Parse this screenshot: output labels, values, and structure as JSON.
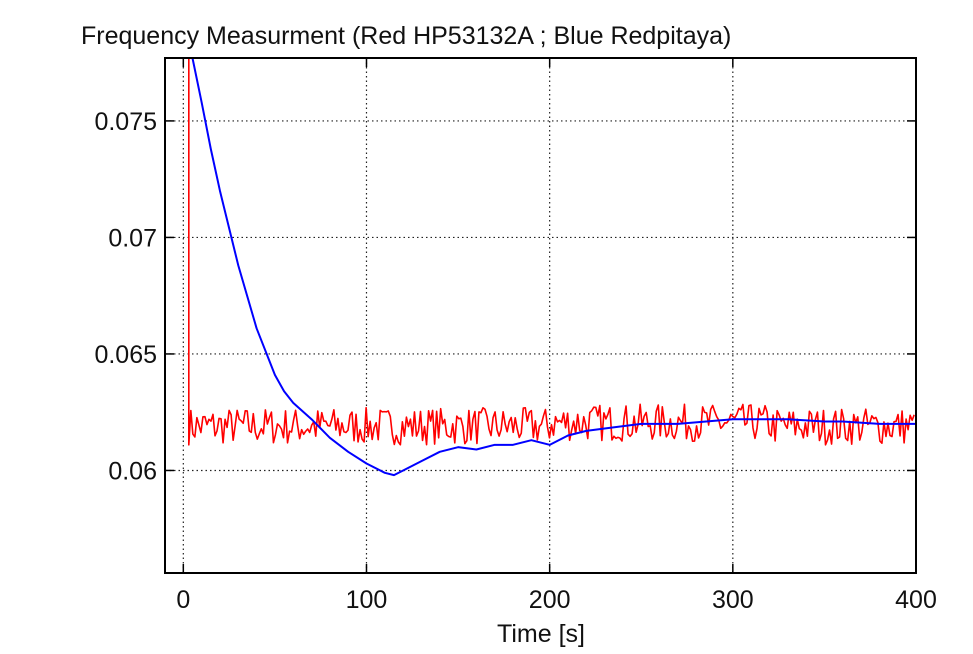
{
  "chart_data": {
    "type": "line",
    "title": "Frequency Measurment (Red HP53132A ; Blue Redpitaya)",
    "xlabel": "Time [s]",
    "ylabel": "",
    "xlim": [
      -10,
      400
    ],
    "ylim": [
      0.0556,
      0.0777
    ],
    "xticks": [
      0,
      100,
      200,
      300,
      400
    ],
    "xtick_labels": [
      "0",
      "100",
      "200",
      "300",
      "400"
    ],
    "yticks": [
      0.06,
      0.065,
      0.07,
      0.075
    ],
    "ytick_labels": [
      "0.06",
      "0.065",
      "0.07",
      "0.075"
    ],
    "grid": true,
    "grid_style": "dotted",
    "legend": "none",
    "series": [
      {
        "color": "#ff0000",
        "style": "noisy trace around 0.062 after initial spike at t≈3 s",
        "x": [
          3,
          3,
          3,
          400
        ],
        "y": [
          0.0777,
          0.0628,
          0.0619,
          0.0619
        ],
        "noise_amplitude": 0.0008
      },
      {
        "color": "#0000ff",
        "style": "smooth decaying trace",
        "x": [
          5,
          10,
          15,
          20,
          30,
          40,
          50,
          55,
          60,
          70,
          80,
          90,
          100,
          110,
          115,
          120,
          130,
          140,
          150,
          160,
          170,
          180,
          190,
          200,
          210,
          220,
          230,
          250,
          270,
          300,
          330,
          350,
          360,
          380,
          400
        ],
        "y": [
          0.0777,
          0.0758,
          0.0738,
          0.072,
          0.0688,
          0.0661,
          0.0641,
          0.0634,
          0.0629,
          0.0622,
          0.0614,
          0.0608,
          0.0603,
          0.0599,
          0.0598,
          0.06,
          0.0604,
          0.0608,
          0.061,
          0.0609,
          0.0611,
          0.0611,
          0.0613,
          0.0611,
          0.0615,
          0.0617,
          0.0618,
          0.062,
          0.062,
          0.0622,
          0.0622,
          0.0621,
          0.0621,
          0.062,
          0.062
        ]
      }
    ]
  }
}
